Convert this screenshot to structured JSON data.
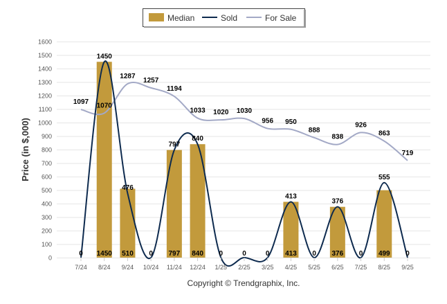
{
  "chart_data": {
    "type": "bar",
    "title": "",
    "xlabel": "",
    "ylabel": "Price (in $,000)",
    "ylim": [
      0,
      1600
    ],
    "yticks": [
      0,
      100,
      200,
      300,
      400,
      500,
      600,
      700,
      800,
      900,
      1000,
      1100,
      1200,
      1300,
      1400,
      1500,
      1600
    ],
    "grid": true,
    "legend_position": "top-center",
    "categories": [
      "7/24",
      "8/24",
      "9/24",
      "10/24",
      "11/24",
      "12/24",
      "1/25",
      "2/25",
      "3/25",
      "4/25",
      "5/25",
      "6/25",
      "7/25",
      "8/25",
      "9/25"
    ],
    "series": [
      {
        "name": "Median",
        "type": "bar",
        "color": "#c29a3c",
        "values": [
          0,
          1450,
          510,
          0,
          797,
          840,
          0,
          0,
          0,
          413,
          0,
          376,
          0,
          499,
          0
        ]
      },
      {
        "name": "Sold",
        "type": "line",
        "color": "#0d2a4e",
        "values": [
          0,
          1450,
          476,
          0,
          797,
          840,
          0,
          0,
          0,
          413,
          0,
          376,
          0,
          555,
          0
        ]
      },
      {
        "name": "For Sale",
        "type": "line",
        "color": "#a3a9c6",
        "values": [
          1097,
          1070,
          1287,
          1257,
          1194,
          1033,
          1020,
          1030,
          956,
          950,
          888,
          838,
          926,
          863,
          719
        ]
      }
    ],
    "footer": "Copyright © Trendgraphix, Inc."
  }
}
